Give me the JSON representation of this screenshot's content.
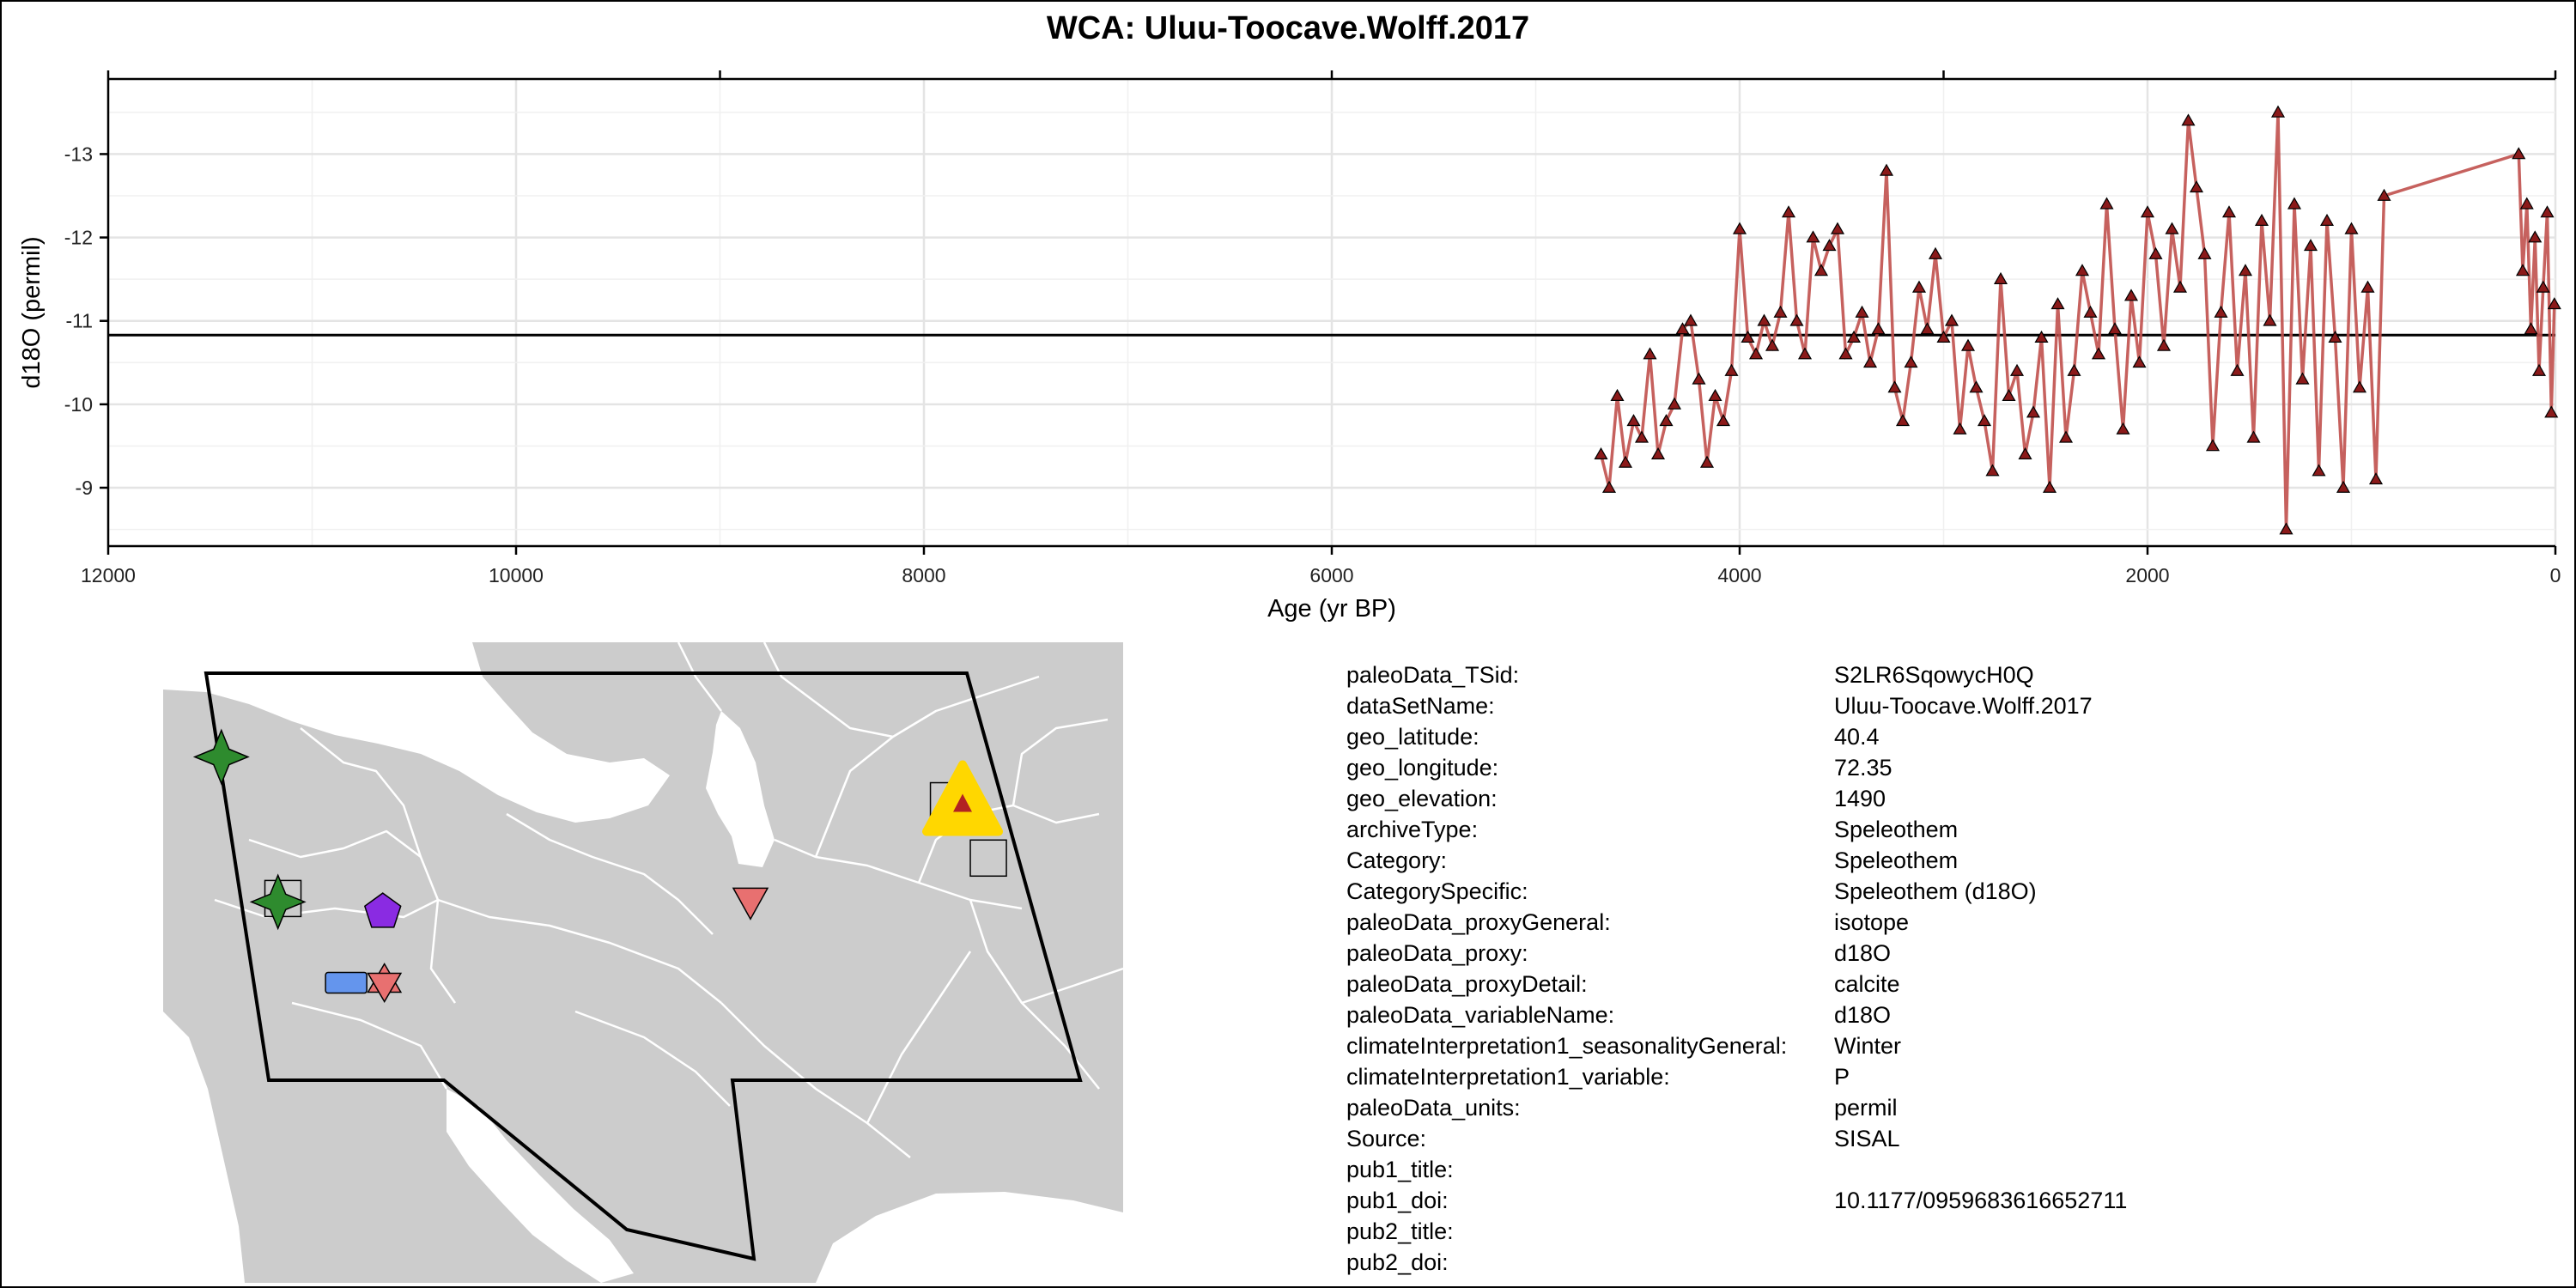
{
  "chart_data": {
    "type": "scatter",
    "title": "WCA: Uluu-Toocave.Wolff.2017",
    "xlabel": "Age (yr BP)",
    "ylabel": "d18O (permil)",
    "x_reversed": true,
    "y_reversed": true,
    "xlim": [
      12000,
      0
    ],
    "ylim": [
      -8.3,
      -13.9
    ],
    "x_ticks": [
      12000,
      10000,
      8000,
      6000,
      4000,
      2000,
      0
    ],
    "y_ticks": [
      -9,
      -10,
      -11,
      -12,
      -13
    ],
    "grid": true,
    "mean_line": -10.83,
    "series": [
      {
        "marker": "triangle",
        "color": "#8b1a1a",
        "line_color": "#c0504d",
        "x": [
          4680,
          4640,
          4600,
          4560,
          4520,
          4480,
          4440,
          4400,
          4360,
          4320,
          4280,
          4240,
          4200,
          4160,
          4120,
          4080,
          4040,
          4000,
          3960,
          3920,
          3880,
          3840,
          3800,
          3760,
          3720,
          3680,
          3640,
          3600,
          3560,
          3520,
          3480,
          3440,
          3400,
          3360,
          3320,
          3280,
          3240,
          3200,
          3160,
          3120,
          3080,
          3040,
          3000,
          2960,
          2920,
          2880,
          2840,
          2800,
          2760,
          2720,
          2680,
          2640,
          2600,
          2560,
          2520,
          2480,
          2440,
          2400,
          2360,
          2320,
          2280,
          2240,
          2200,
          2160,
          2120,
          2080,
          2040,
          2000,
          1960,
          1920,
          1880,
          1840,
          1800,
          1760,
          1720,
          1680,
          1640,
          1600,
          1560,
          1520,
          1480,
          1440,
          1400,
          1360,
          1320,
          1280,
          1240,
          1200,
          1160,
          1120,
          1080,
          1040,
          1000,
          960,
          920,
          880,
          840,
          180,
          160,
          140,
          120,
          100,
          80,
          60,
          40,
          20,
          5
        ],
        "y": [
          -9.4,
          -9.0,
          -10.1,
          -9.3,
          -9.8,
          -9.6,
          -10.6,
          -9.4,
          -9.8,
          -10.0,
          -10.9,
          -11.0,
          -10.3,
          -9.3,
          -10.1,
          -9.8,
          -10.4,
          -12.1,
          -10.8,
          -10.6,
          -11.0,
          -10.7,
          -11.1,
          -12.3,
          -11.0,
          -10.6,
          -12.0,
          -11.6,
          -11.9,
          -12.1,
          -10.6,
          -10.8,
          -11.1,
          -10.5,
          -10.9,
          -12.8,
          -10.2,
          -9.8,
          -10.5,
          -11.4,
          -10.9,
          -11.8,
          -10.8,
          -11.0,
          -9.7,
          -10.7,
          -10.2,
          -9.8,
          -9.2,
          -11.5,
          -10.1,
          -10.4,
          -9.4,
          -9.9,
          -10.8,
          -9.0,
          -11.2,
          -9.6,
          -10.4,
          -11.6,
          -11.1,
          -10.6,
          -12.4,
          -10.9,
          -9.7,
          -11.3,
          -10.5,
          -12.3,
          -11.8,
          -10.7,
          -12.1,
          -11.4,
          -13.4,
          -12.6,
          -11.8,
          -9.5,
          -11.1,
          -12.3,
          -10.4,
          -11.6,
          -9.6,
          -12.2,
          -11.0,
          -13.5,
          -8.5,
          -12.4,
          -10.3,
          -11.9,
          -9.2,
          -12.2,
          -10.8,
          -9.0,
          -12.1,
          -10.2,
          -11.4,
          -9.1,
          -12.5,
          -13.0,
          -11.6,
          -12.4,
          -10.9,
          -12.0,
          -10.4,
          -11.4,
          -12.3,
          -9.9,
          -11.2
        ]
      }
    ]
  },
  "map": {
    "sites": [
      {
        "name": "green-star",
        "shape": "star4",
        "color": "#2e8b2e",
        "lon": 27.8,
        "lat": 41.8
      },
      {
        "name": "grey-square",
        "shape": "square",
        "color": "#cccccc",
        "lon": 31.5,
        "lat": 37.6
      },
      {
        "name": "green-star",
        "shape": "star4",
        "color": "#2e8b2e",
        "lon": 31.2,
        "lat": 37.5
      },
      {
        "name": "purple-pentagon",
        "shape": "pentagon",
        "color": "#8a2be2",
        "lon": 37.5,
        "lat": 37.2
      },
      {
        "name": "blue-rectangle",
        "shape": "rect",
        "color": "#6495ed",
        "lon": 35.3,
        "lat": 35.1
      },
      {
        "name": "red-star-of-david",
        "shape": "hexagram",
        "color": "#e87070",
        "lon": 37.6,
        "lat": 35.1
      },
      {
        "name": "red-triangle-down",
        "shape": "triangle-down",
        "color": "#e87070",
        "lon": 59.6,
        "lat": 37.5
      },
      {
        "name": "grey-square",
        "shape": "square",
        "color": "#cccccc",
        "lon": 71.5,
        "lat": 40.5
      },
      {
        "name": "grey-square",
        "shape": "square",
        "color": "#cccccc",
        "lon": 73.9,
        "lat": 38.8
      },
      {
        "name": "highlight-site",
        "shape": "triangle-up-highlight",
        "color": "#ffd700",
        "inner_color": "#b22222",
        "lon": 72.35,
        "lat": 40.4
      }
    ]
  },
  "metadata": [
    {
      "key": "paleoData_TSid:",
      "value": "S2LR6SqowycH0Q"
    },
    {
      "key": "dataSetName:",
      "value": "Uluu-Toocave.Wolff.2017"
    },
    {
      "key": "geo_latitude:",
      "value": "40.4"
    },
    {
      "key": "geo_longitude:",
      "value": "72.35"
    },
    {
      "key": "geo_elevation:",
      "value": "1490"
    },
    {
      "key": "archiveType:",
      "value": "Speleothem"
    },
    {
      "key": "Category:",
      "value": "Speleothem"
    },
    {
      "key": "CategorySpecific:",
      "value": "Speleothem (d18O)"
    },
    {
      "key": "paleoData_proxyGeneral:",
      "value": "isotope"
    },
    {
      "key": "paleoData_proxy:",
      "value": "d18O"
    },
    {
      "key": "paleoData_proxyDetail:",
      "value": "calcite"
    },
    {
      "key": "paleoData_variableName:",
      "value": "d18O"
    },
    {
      "key": "climateInterpretation1_seasonalityGeneral:",
      "value": "Winter"
    },
    {
      "key": "climateInterpretation1_variable:",
      "value": "P"
    },
    {
      "key": "paleoData_units:",
      "value": "permil"
    },
    {
      "key": "Source:",
      "value": "SISAL"
    },
    {
      "key": "pub1_title:",
      "value": ""
    },
    {
      "key": "pub1_doi:",
      "value": "10.1177/0959683616652711"
    },
    {
      "key": "pub2_title:",
      "value": ""
    },
    {
      "key": "pub2_doi:",
      "value": ""
    }
  ]
}
